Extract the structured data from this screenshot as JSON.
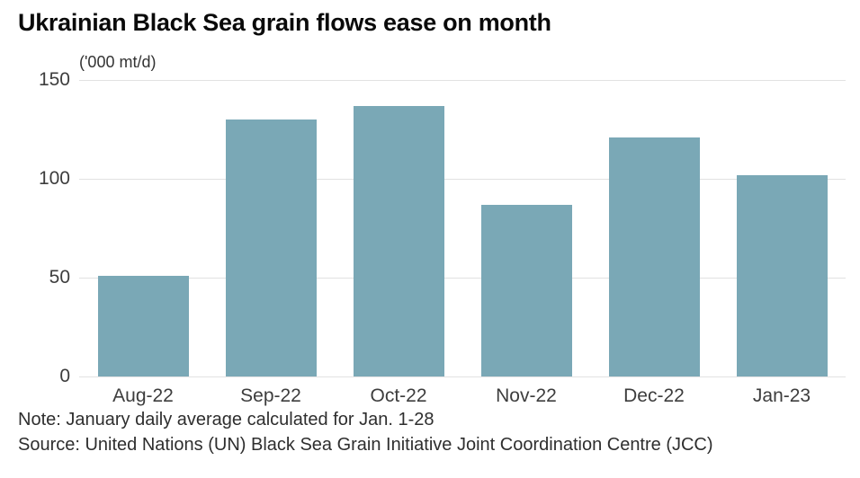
{
  "chart": {
    "title": "Ukrainian Black Sea grain flows ease on month",
    "unit_label": "('000 mt/d)"
  },
  "footer": {
    "note": "Note: January daily average calculated for Jan. 1-28",
    "source": "Source: United Nations (UN) Black Sea Grain Initiative Joint Coordination Centre (JCC)"
  },
  "colors": {
    "bar": "#7aa8b6",
    "gridline": "#e2e2e2",
    "title_text": "#0a0a0a",
    "axis_text": "#3d3d3d",
    "footer_text": "#2e2e2e",
    "background": "#ffffff"
  },
  "chart_data": {
    "type": "bar",
    "title": "Ukrainian Black Sea grain flows ease on month",
    "subtitle": "",
    "unit": "'000 mt/d",
    "xlabel": "",
    "ylabel": "('000 mt/d)",
    "categories": [
      "Aug-22",
      "Sep-22",
      "Oct-22",
      "Nov-22",
      "Dec-22",
      "Jan-23"
    ],
    "values": [
      51,
      130,
      137,
      87,
      121,
      102
    ],
    "yticks": [
      0,
      50,
      100,
      150
    ],
    "ylim": [
      0,
      150
    ],
    "grid": "horizontal",
    "legend": "none",
    "bar_color": "#7aa8b6",
    "note": "Note: January daily average calculated for Jan. 1-28",
    "source": "Source: United Nations (UN) Black Sea Grain Initiative Joint Coordination Centre (JCC)"
  }
}
